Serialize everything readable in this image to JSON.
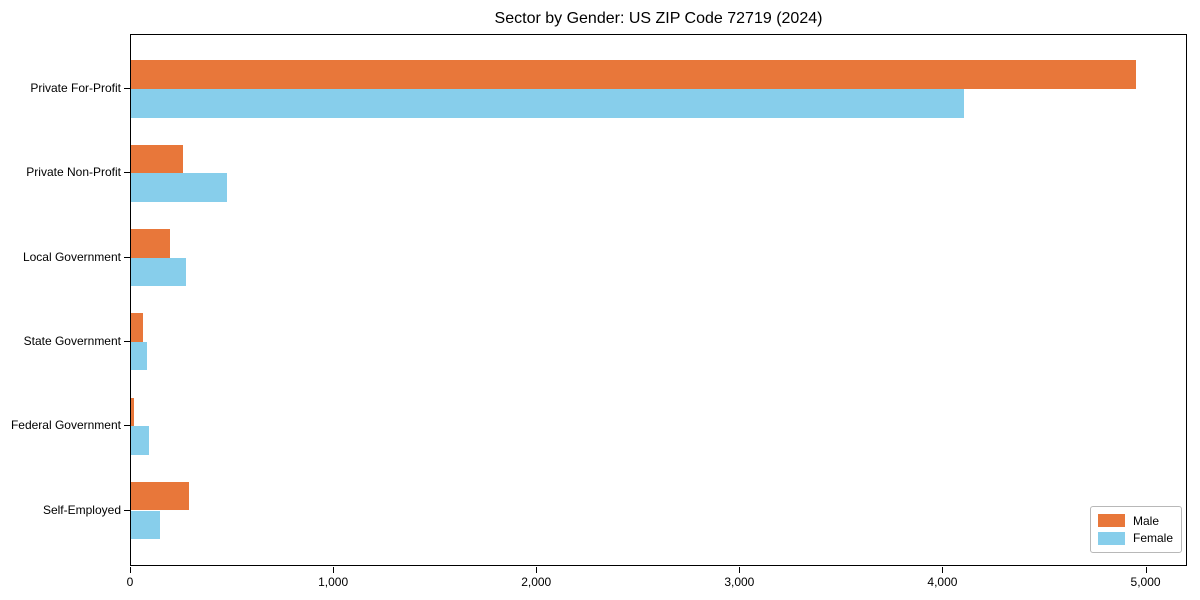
{
  "chart_data": {
    "type": "bar",
    "orientation": "horizontal",
    "title": "Sector by Gender: US ZIP Code 72719 (2024)",
    "categories": [
      "Private For-Profit",
      "Private Non-Profit",
      "Local Government",
      "State Government",
      "Federal Government",
      "Self-Employed"
    ],
    "series": [
      {
        "name": "Male",
        "color": "#E8773A",
        "values": [
          4950,
          255,
          190,
          57,
          17,
          285
        ]
      },
      {
        "name": "Female",
        "color": "#87CEEB",
        "values": [
          4100,
          475,
          270,
          80,
          88,
          145
        ]
      }
    ],
    "xlabel": "",
    "ylabel": "",
    "xlim": [
      0,
      5204
    ],
    "xticks": [
      0,
      1000,
      2000,
      3000,
      4000,
      5000
    ],
    "xtick_labels": [
      "0",
      "1,000",
      "2,000",
      "3,000",
      "4,000",
      "5,000"
    ],
    "grid": false,
    "legend_position": "lower right",
    "background_color": "#ffffff",
    "text_color": "#000000"
  }
}
